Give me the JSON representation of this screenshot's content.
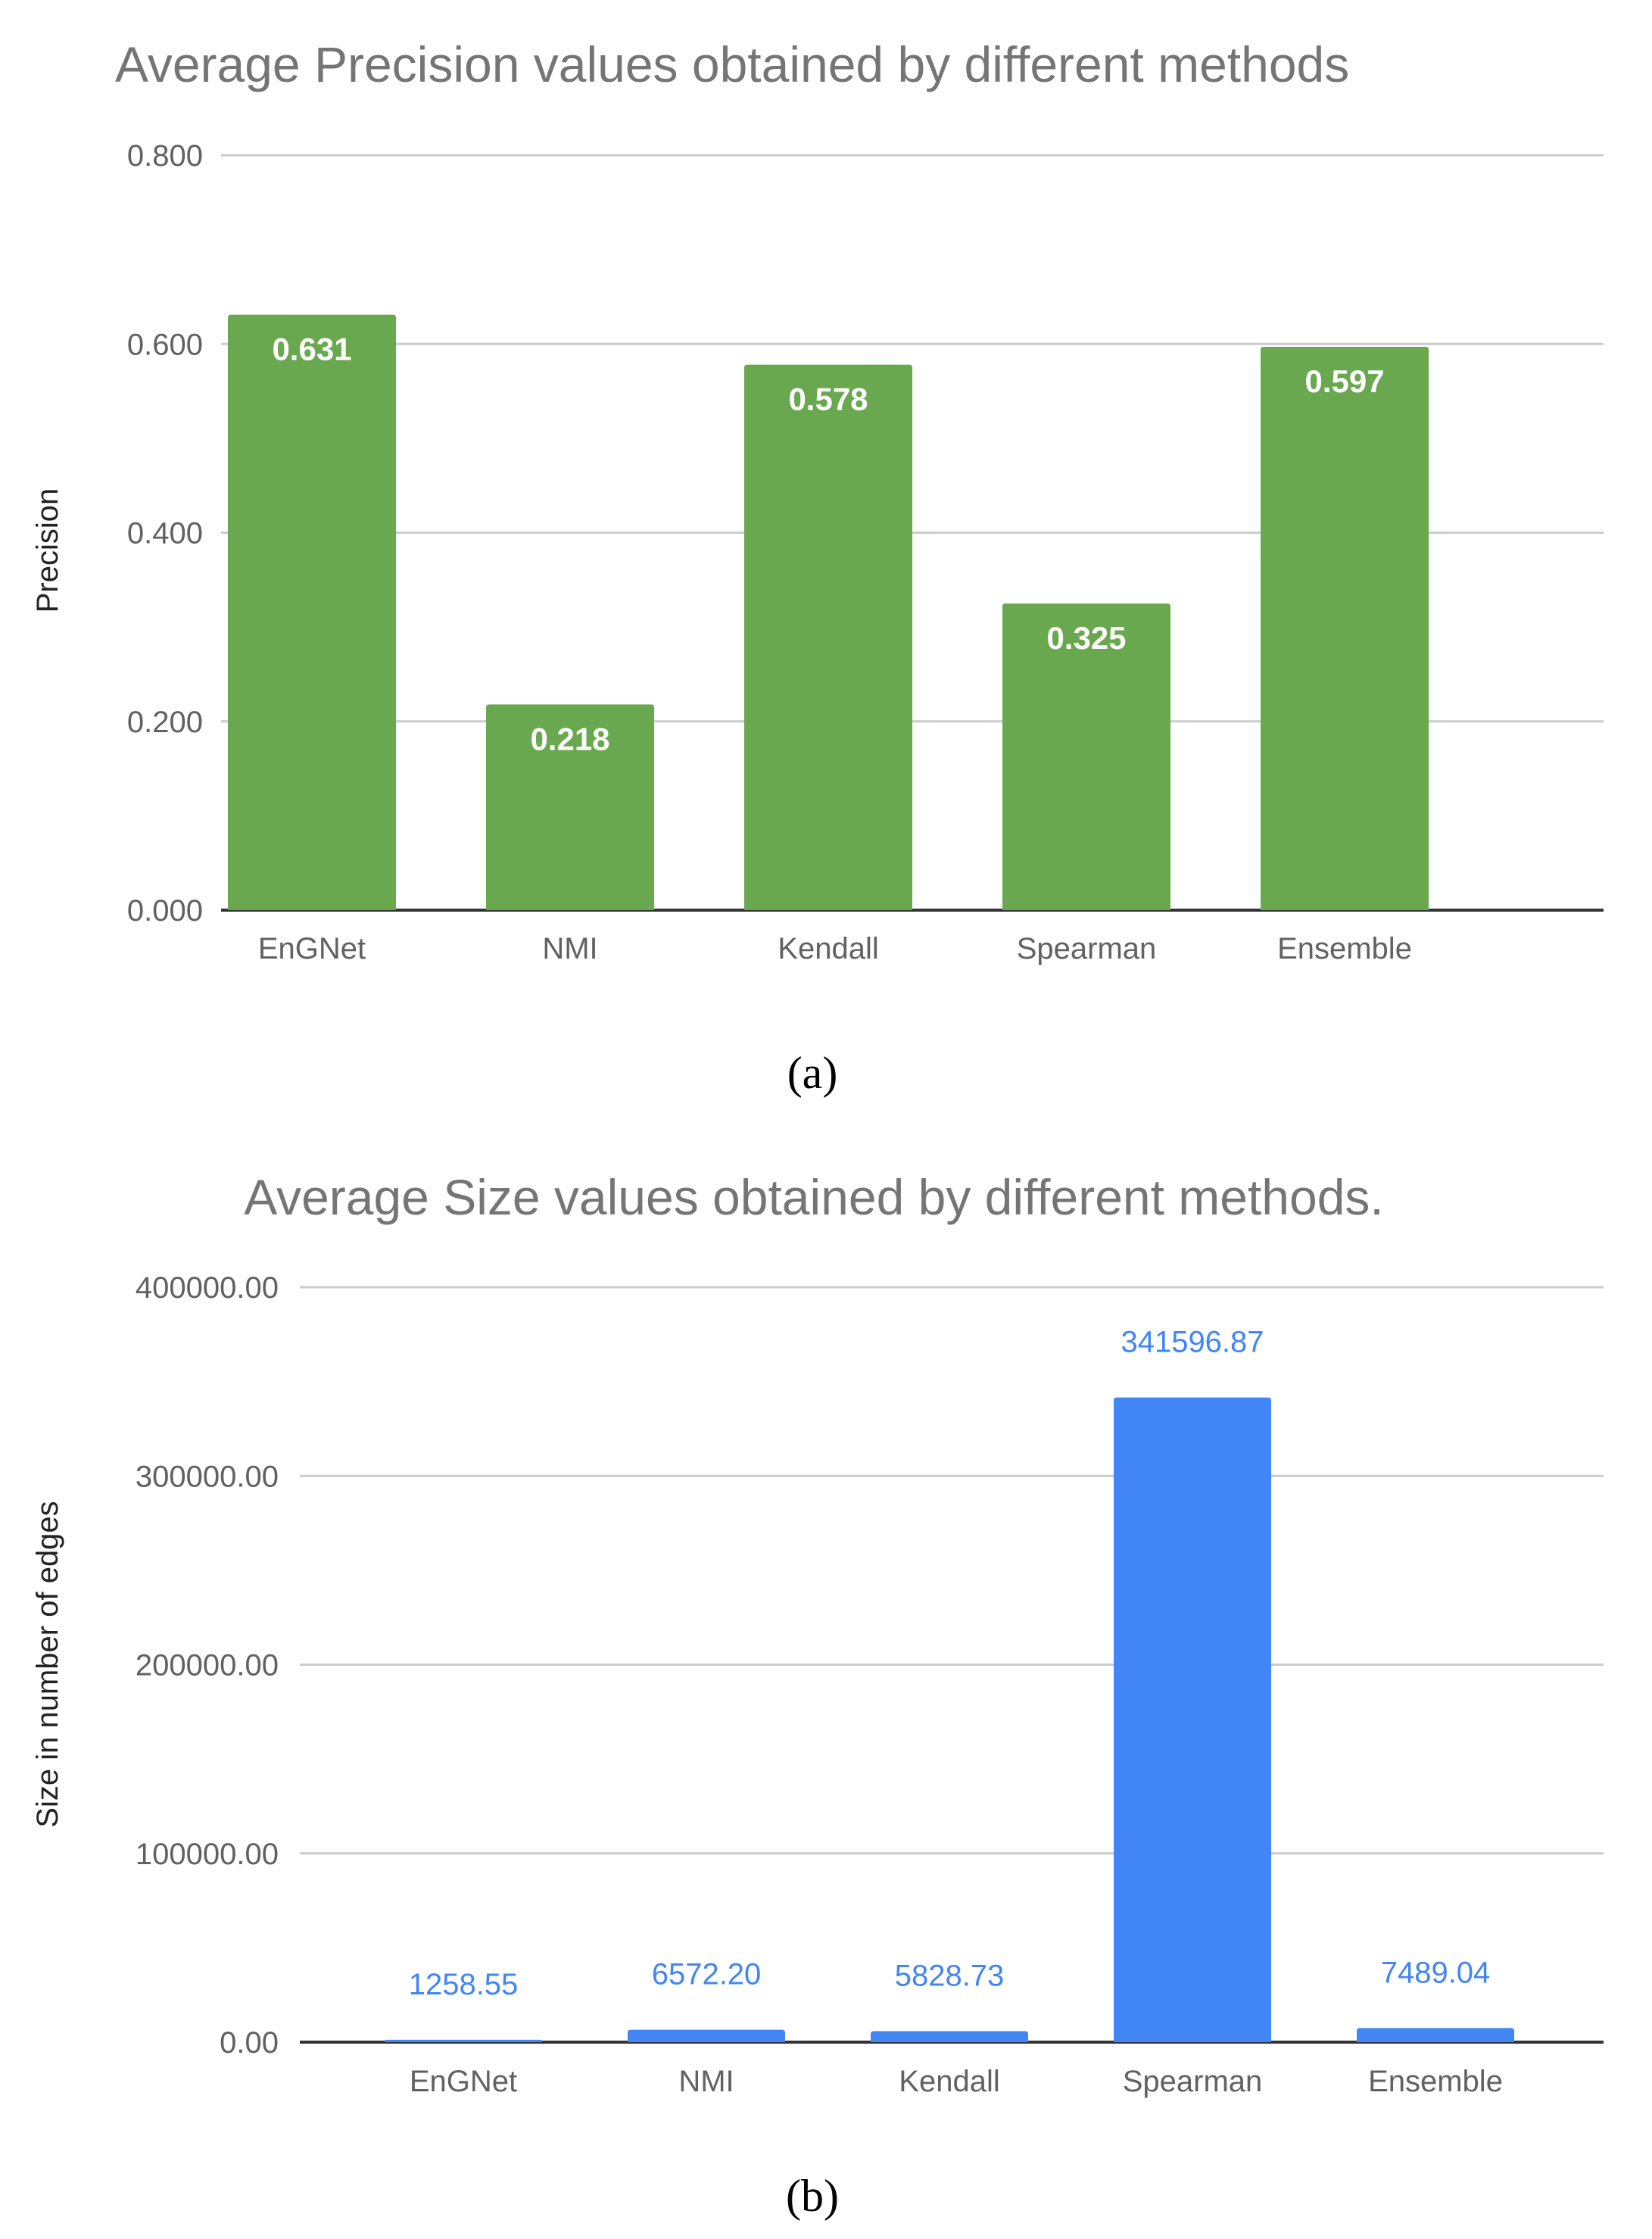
{
  "chart_data": [
    {
      "type": "bar",
      "title": "Average Precision values obtained by different methods",
      "xlabel": "",
      "ylabel": "Precision",
      "categories": [
        "EnGNet",
        "NMI",
        "Kendall",
        "Spearman",
        "Ensemble"
      ],
      "values": [
        0.631,
        0.218,
        0.578,
        0.325,
        0.597
      ],
      "value_labels": [
        "0.631",
        "0.218",
        "0.578",
        "0.325",
        "0.597"
      ],
      "ylim": [
        0,
        0.8
      ],
      "yticks": [
        0,
        0.2,
        0.4,
        0.6,
        0.8
      ],
      "ytick_labels": [
        "0.000",
        "0.200",
        "0.400",
        "0.600",
        "0.800"
      ],
      "bar_color": "#6aa84f",
      "label_color": "#ffffff",
      "label_position": "inside-top",
      "caption": "(a)"
    },
    {
      "type": "bar",
      "title": "Average Size values obtained by different methods.",
      "xlabel": "",
      "ylabel": "Size in number of edges",
      "categories": [
        "EnGNet",
        "NMI",
        "Kendall",
        "Spearman",
        "Ensemble"
      ],
      "values": [
        1258.55,
        6572.2,
        5828.73,
        341596.87,
        7489.04
      ],
      "value_labels": [
        "1258.55",
        "6572.20",
        "5828.73",
        "341596.87",
        "7489.04"
      ],
      "ylim": [
        0,
        400000
      ],
      "yticks": [
        0,
        100000,
        200000,
        300000,
        400000
      ],
      "ytick_labels": [
        "0.00",
        "100000.00",
        "200000.00",
        "300000.00",
        "400000.00"
      ],
      "bar_color": "#4285f4",
      "label_color": "#4285f4",
      "label_position": "above",
      "caption": "(b)"
    }
  ]
}
